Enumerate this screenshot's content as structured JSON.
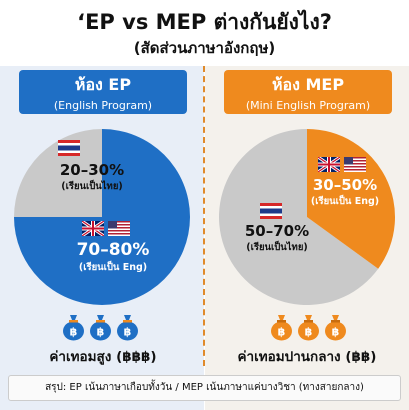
{
  "title": "‘EP vs MEP ต่างกันยังไง?",
  "subtitle": "(สัดส่วนภาษาอังกฤษ)",
  "colors": {
    "ep_blue": "#1f6fc5",
    "mep_orange": "#ef8a1e",
    "gray": "#c9c9c9"
  },
  "ep": {
    "header_title": "ห้อง EP",
    "header_sub": "(English Program)",
    "thai_pct": "20–30%",
    "thai_sub": "(เรียนเป็นไทย)",
    "eng_pct": "70–80%",
    "eng_sub": "(เรียนเป็น Eng)",
    "bag_symbol": "฿",
    "cost_label": "ค่าเทอมสูง (฿฿฿)"
  },
  "mep": {
    "header_title": "ห้อง MEP",
    "header_sub": "(Mini English Program)",
    "eng_pct": "30–50%",
    "eng_sub": "(เรียนเป็น Eng)",
    "thai_pct": "50–70%",
    "thai_sub": "(เรียนเป็นไทย)",
    "bag_symbol": "฿",
    "cost_label": "ค่าเทอมปานกลาง (฿฿)"
  },
  "summary": "สรุป: EP เน้นภาษาเกือบทั้งวัน / MEP เน้นภาษาแค่บางวิชา (ทางสายกลาง)",
  "chart_data": [
    {
      "type": "pie",
      "title": "ห้อง EP",
      "slices": [
        {
          "label": "70–80% (เรียนเป็น Eng)",
          "value": 75
        },
        {
          "label": "20–30% (เรียนเป็นไทย)",
          "value": 25
        }
      ]
    },
    {
      "type": "pie",
      "title": "ห้อง MEP",
      "slices": [
        {
          "label": "30–50% (เรียนเป็น Eng)",
          "value": 35
        },
        {
          "label": "50–70% (เรียนเป็นไทย)",
          "value": 65
        }
      ]
    }
  ]
}
